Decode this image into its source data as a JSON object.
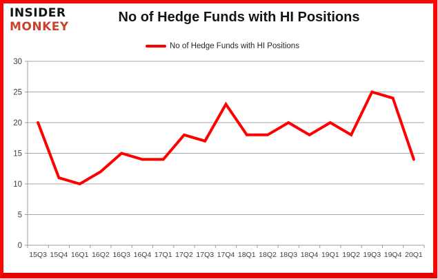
{
  "brand": {
    "line1": "INSIDER",
    "line2": "MONKEY"
  },
  "header": {
    "title": "No of Hedge Funds with HI Positions"
  },
  "legend": {
    "label": "No of Hedge Funds with HI Positions"
  },
  "colors": {
    "line": "#fe0000",
    "border": "#fb0505",
    "brand_black": "#151515",
    "brand_red": "#c8432e",
    "grid": "#a6a6a6",
    "axis_line": "#9c9c9c",
    "axis_text": "#404040"
  },
  "chart_data": {
    "type": "line",
    "title": "No of Hedge Funds with HI Positions",
    "categories": [
      "15Q3",
      "15Q4",
      "16Q1",
      "16Q2",
      "16Q3",
      "16Q4",
      "17Q1",
      "17Q2",
      "17Q3",
      "17Q4",
      "18Q1",
      "18Q2",
      "18Q3",
      "18Q4",
      "19Q1",
      "19Q2",
      "19Q3",
      "19Q4",
      "20Q1"
    ],
    "series": [
      {
        "name": "No of Hedge Funds with HI Positions",
        "values": [
          20,
          11,
          10,
          12,
          15,
          14,
          14,
          18,
          17,
          23,
          18,
          18,
          20,
          18,
          20,
          18,
          25,
          24,
          14
        ]
      }
    ],
    "xlabel": "",
    "ylabel": "",
    "ylim": [
      0,
      30
    ],
    "yticks": [
      0,
      5,
      10,
      15,
      20,
      25,
      30
    ],
    "grid": true,
    "legend_position": "top-center"
  }
}
